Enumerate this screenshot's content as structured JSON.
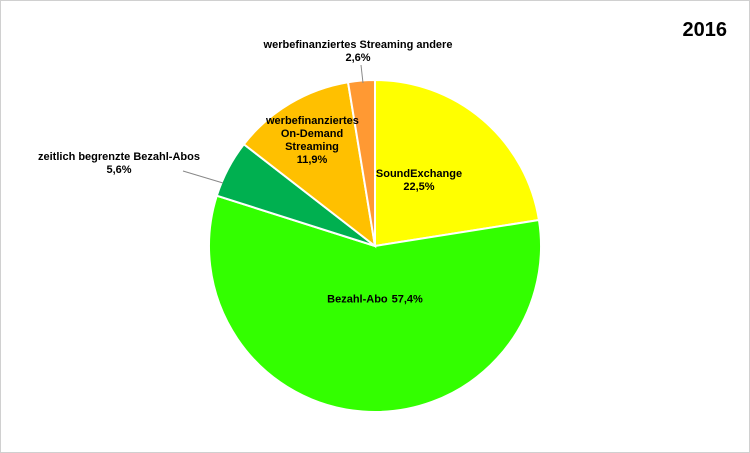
{
  "chart_data": {
    "type": "pie",
    "title": "2016",
    "categories": [
      "SoundExchange",
      "Bezahl-Abo",
      "zeitlich begrenzte Bezahl-Abos",
      "werbefinanziertes On-Demand Streaming",
      "werbefinanziertes Streaming andere"
    ],
    "values": [
      22.5,
      57.4,
      5.6,
      11.9,
      2.6
    ],
    "value_labels": [
      "22,5%",
      "57,4%",
      "5,6%",
      "11,9%",
      "2,6%"
    ],
    "colors": [
      "#ffff00",
      "#33ff00",
      "#00b050",
      "#ffc000",
      "#ff9933"
    ]
  }
}
